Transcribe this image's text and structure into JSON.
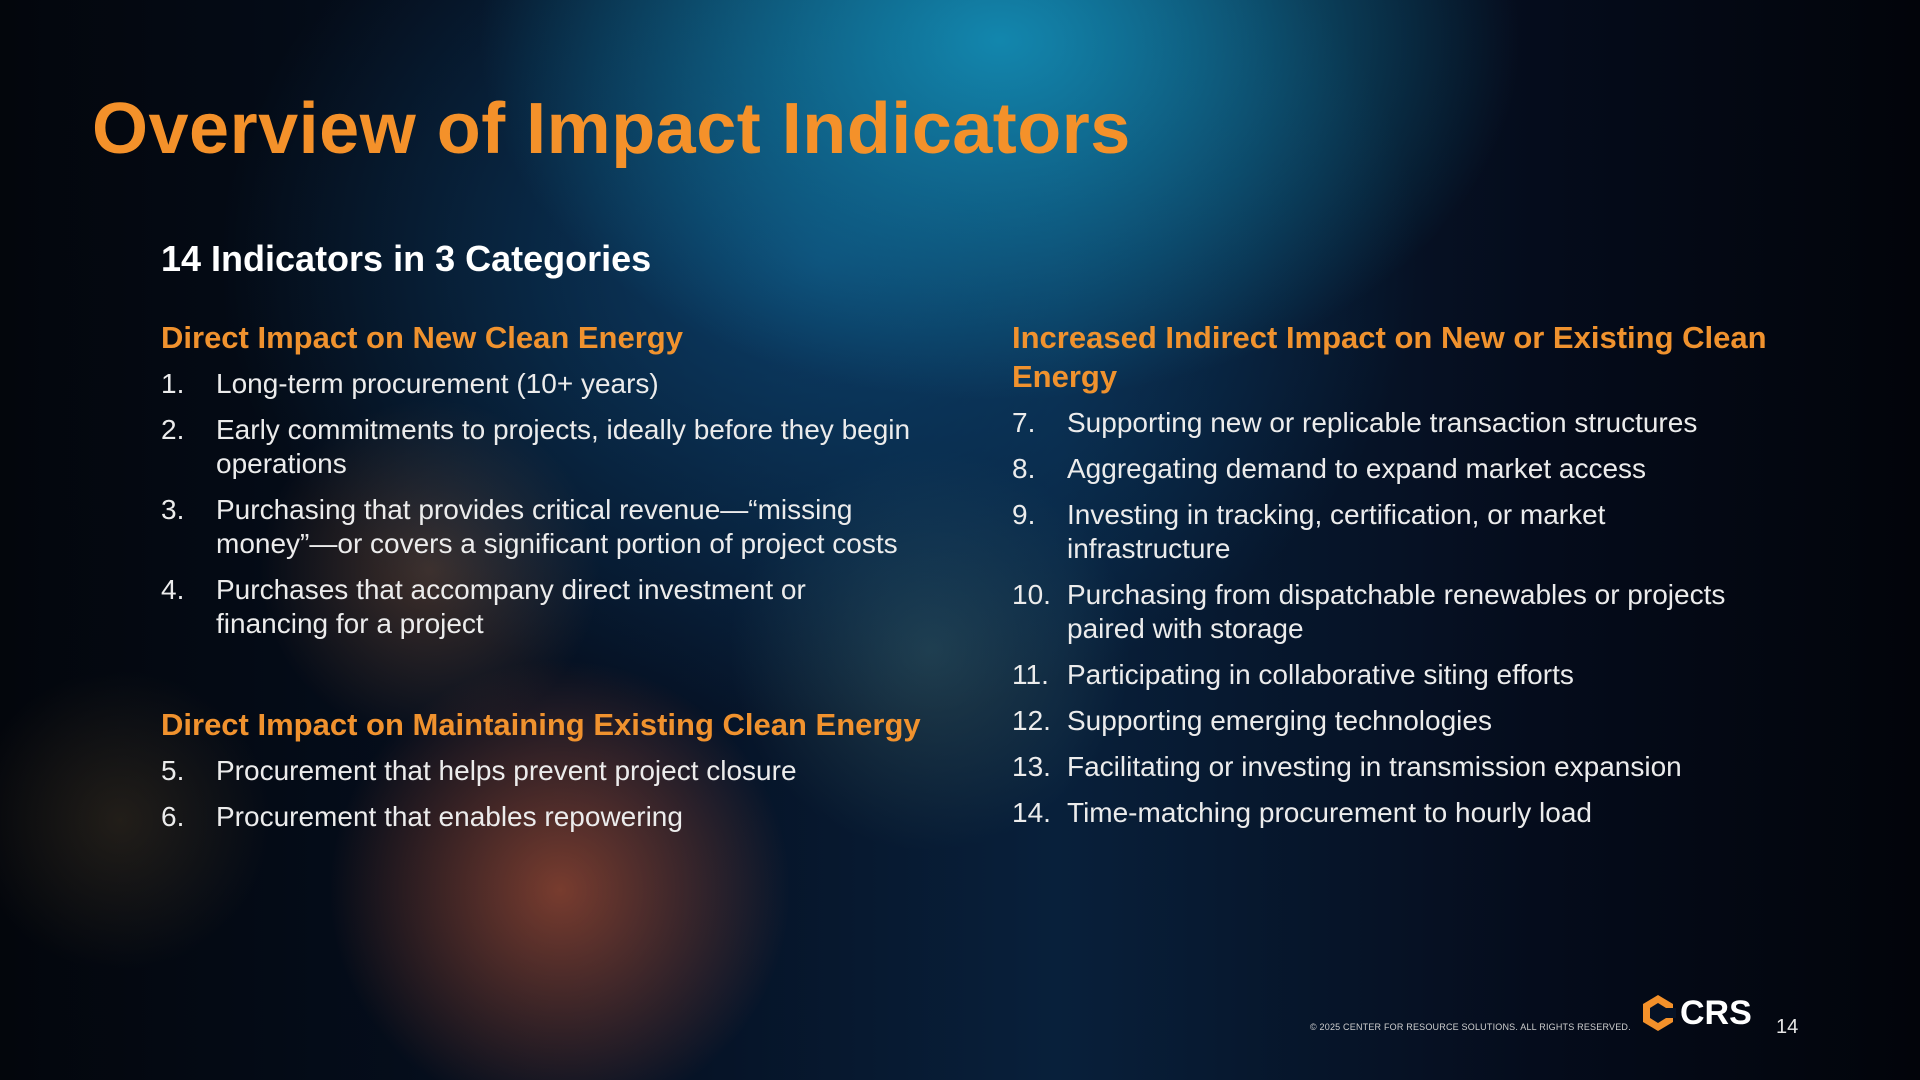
{
  "slide": {
    "title": "Overview of Impact Indicators",
    "subtitle": "14 Indicators in 3 Categories"
  },
  "categories": [
    {
      "title": "Direct Impact on New Clean Energy",
      "items": [
        {
          "num": "1.",
          "text": "Long-term procurement (10+ years)"
        },
        {
          "num": "2.",
          "text": "Early commitments to projects, ideally before they begin operations"
        },
        {
          "num": "3.",
          "text": "Purchasing that provides critical revenue—“missing money”—or covers a significant portion of project costs"
        },
        {
          "num": "4.",
          "text": "Purchases that accompany direct investment or financing for a project"
        }
      ]
    },
    {
      "title": "Direct Impact on Maintaining Existing Clean Energy",
      "items": [
        {
          "num": "5.",
          "text": "Procurement that helps prevent project closure"
        },
        {
          "num": "6.",
          "text": "Procurement that enables repowering"
        }
      ]
    },
    {
      "title": "Increased Indirect Impact on New or Existing Clean Energy",
      "items": [
        {
          "num": "7.",
          "text": "Supporting new or replicable transaction structures"
        },
        {
          "num": "8.",
          "text": "Aggregating demand to expand market access"
        },
        {
          "num": "9.",
          "text": "Investing in tracking, certification, or market infrastructure"
        },
        {
          "num": "10.",
          "text": "Purchasing from dispatchable renewables or projects paired with storage"
        },
        {
          "num": "11.",
          "text": "Participating in collaborative siting efforts"
        },
        {
          "num": "12.",
          "text": "Supporting emerging technologies"
        },
        {
          "num": "13.",
          "text": "Facilitating or investing in transmission expansion"
        },
        {
          "num": "14.",
          "text": "Time-matching procurement to hourly load"
        }
      ]
    }
  ],
  "footer": {
    "copyright": "© 2025 CENTER FOR RESOURCE SOLUTIONS. ALL RIGHTS RESERVED.",
    "logo_text": "CRS",
    "page_number": "14"
  },
  "colors": {
    "accent": "#f4912a",
    "background": "#061225",
    "text": "#ececec"
  }
}
